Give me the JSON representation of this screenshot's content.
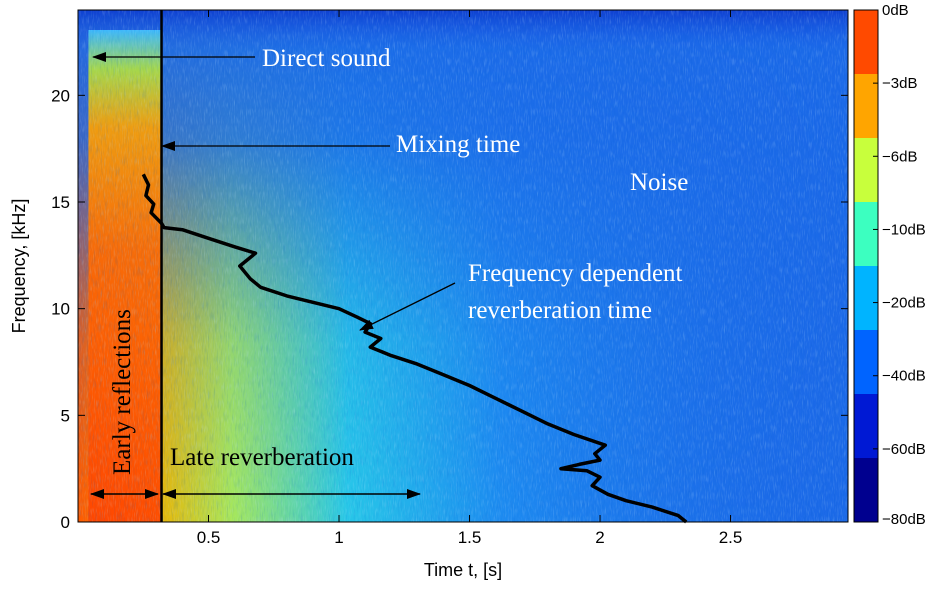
{
  "chart_data": {
    "type": "heatmap",
    "title": "",
    "xlabel": "Time t, [s]",
    "ylabel": "Frequency, [kHz]",
    "xlim": [
      0,
      2.95
    ],
    "ylim": [
      0,
      24
    ],
    "x_ticks": [
      0.5,
      1,
      1.5,
      2,
      2.5
    ],
    "x_tick_labels": [
      "0.5",
      "1",
      "1.5",
      "2",
      "2.5"
    ],
    "y_ticks": [
      0,
      5,
      10,
      15,
      20
    ],
    "y_tick_labels": [
      "0",
      "5",
      "10",
      "15",
      "20"
    ],
    "colorbar": {
      "levels": [
        0,
        -3,
        -6,
        -10,
        -20,
        -40,
        -60,
        -80
      ],
      "labels": [
        "0dB",
        "−3dB",
        "−6dB",
        "−10dB",
        "−20dB",
        "−40dB",
        "−60dB",
        "−80dB"
      ],
      "colors": [
        "#ff4a00",
        "#ffa500",
        "#c8ff3c",
        "#3cffc0",
        "#00b4ff",
        "#0064ff",
        "#0019d4",
        "#00008f"
      ]
    },
    "mixing_time_s": 0.32,
    "reverberation_curve": {
      "name": "Frequency dependent reverberation time",
      "t": [
        0.25,
        0.27,
        0.26,
        0.29,
        0.28,
        0.32,
        0.33,
        0.4,
        0.5,
        0.6,
        0.68,
        0.62,
        0.66,
        0.7,
        0.8,
        0.9,
        1.0,
        1.07,
        1.12,
        1.1,
        1.16,
        1.12,
        1.2,
        1.3,
        1.4,
        1.5,
        1.6,
        1.7,
        1.8,
        1.9,
        2.02,
        1.98,
        2.0,
        1.92,
        1.85,
        1.95,
        2.0,
        1.97,
        2.03,
        2.1,
        2.2,
        2.3,
        2.33
      ],
      "f_khz": [
        16.3,
        15.8,
        15.3,
        14.9,
        14.5,
        14.0,
        13.8,
        13.7,
        13.3,
        12.9,
        12.6,
        12.0,
        11.4,
        11.0,
        10.6,
        10.3,
        10.0,
        9.6,
        9.3,
        8.9,
        8.6,
        8.2,
        7.8,
        7.4,
        6.9,
        6.4,
        5.8,
        5.2,
        4.6,
        4.1,
        3.6,
        3.2,
        2.9,
        2.7,
        2.5,
        2.4,
        2.1,
        1.7,
        1.3,
        1.0,
        0.7,
        0.3,
        0.0
      ]
    },
    "annotations": {
      "direct_sound": "Direct sound",
      "mixing_time": "Mixing time",
      "noise": "Noise",
      "freq_dep_line1": "Frequency dependent",
      "freq_dep_line2": "reverberation time",
      "early_reflections": "Early reflections",
      "late_reverberation": "Late reverberation"
    }
  }
}
